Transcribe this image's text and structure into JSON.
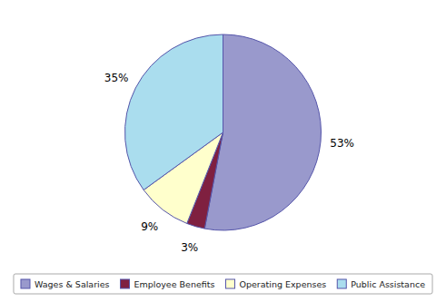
{
  "chart_data": {
    "type": "pie",
    "categories": [
      "Wages & Salaries",
      "Employee Benefits",
      "Operating Expenses",
      "Public Assistance"
    ],
    "values": [
      53,
      3,
      9,
      35
    ],
    "value_labels": [
      "53%",
      "3%",
      "9%",
      "35%"
    ],
    "colors": [
      "#9999cc",
      "#7f2040",
      "#ffffcc",
      "#aaddee"
    ],
    "data_labels": true,
    "legend": "bottom"
  }
}
